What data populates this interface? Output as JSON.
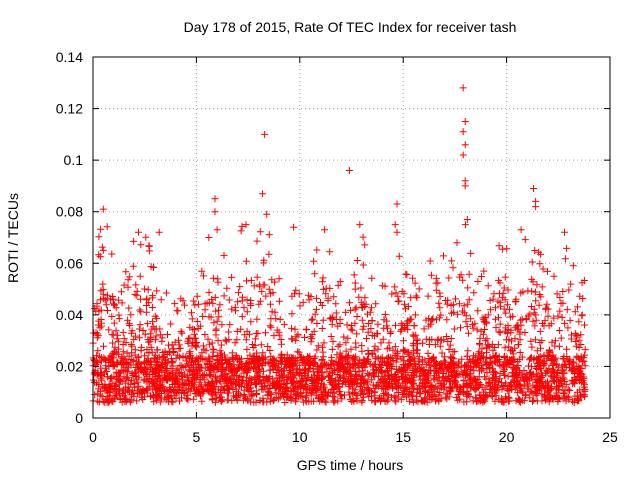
{
  "chart_data": {
    "type": "scatter",
    "title": "Day 178 of 2015, Rate Of TEC Index for receiver tash",
    "xlabel": "GPS time / hours",
    "ylabel": "ROTI / TECUs",
    "xlim": [
      0,
      25
    ],
    "ylim": [
      0,
      0.14
    ],
    "x_ticks": [
      0,
      5,
      10,
      15,
      20,
      25
    ],
    "y_ticks": [
      0,
      0.02,
      0.04,
      0.06,
      0.08,
      0.1,
      0.12,
      0.14
    ],
    "x_tick_labels": [
      "0",
      "5",
      "10",
      "15",
      "20",
      "25"
    ],
    "y_tick_labels": [
      "0",
      "0.02",
      "0.04",
      "0.06",
      "0.08",
      "0.1",
      "0.12",
      "0.14"
    ],
    "grid": true,
    "marker": "plus",
    "marker_color": "#ff0000",
    "series": [
      {
        "name": "ROTI",
        "x_range": [
          0,
          23.8
        ],
        "typical_range": [
          0.005,
          0.05
        ],
        "outliers": [
          [
            0.5,
            0.081
          ],
          [
            0.5,
            0.065
          ],
          [
            2.2,
            0.072
          ],
          [
            3.2,
            0.072
          ],
          [
            5.9,
            0.085
          ],
          [
            5.9,
            0.08
          ],
          [
            6.0,
            0.073
          ],
          [
            7.4,
            0.075
          ],
          [
            8.2,
            0.087
          ],
          [
            8.3,
            0.11
          ],
          [
            8.4,
            0.079
          ],
          [
            9.7,
            0.074
          ],
          [
            11.2,
            0.073
          ],
          [
            12.4,
            0.096
          ],
          [
            12.9,
            0.075
          ],
          [
            14.7,
            0.083
          ],
          [
            14.7,
            0.072
          ],
          [
            17.6,
            0.068
          ],
          [
            17.9,
            0.128
          ],
          [
            18.0,
            0.115
          ],
          [
            17.9,
            0.111
          ],
          [
            18.0,
            0.106
          ],
          [
            17.9,
            0.102
          ],
          [
            18.0,
            0.092
          ],
          [
            18.0,
            0.09
          ],
          [
            18.1,
            0.077
          ],
          [
            20.7,
            0.073
          ],
          [
            21.3,
            0.089
          ],
          [
            21.4,
            0.084
          ],
          [
            21.4,
            0.082
          ],
          [
            22.8,
            0.072
          ]
        ]
      }
    ]
  }
}
